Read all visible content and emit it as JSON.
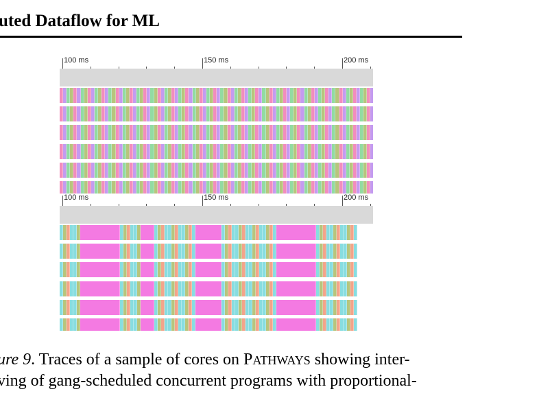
{
  "header": {
    "running_title": "uted Dataflow for ML"
  },
  "colors": {
    "pink": "#f28dbd",
    "purple": "#c49bf0",
    "green": "#92dba2",
    "olive": "#b7c57d",
    "cyan": "#88dde0",
    "salmon": "#f3a48a",
    "magenta": "#f47ae2",
    "ruler_gray": "#d9d9d9"
  },
  "panels": [
    {
      "name": "trace-top",
      "tick_labels": [
        "100 ms",
        "150 ms",
        "200 ms"
      ],
      "row_count": 6,
      "pattern": "interleaved-uniform"
    },
    {
      "name": "trace-bottom",
      "tick_labels": [
        "100 ms",
        "150 ms",
        "200 ms"
      ],
      "row_count": 6,
      "pattern": "interleaved-proportional"
    }
  ],
  "caption": {
    "figure_label": "ure 9",
    "line1_pre": ". Traces of a sample of cores on ",
    "system_name_cap": "P",
    "system_name_rest": "ATHWAYS",
    "line1_post": " showing inter-",
    "line2": "ving of gang-scheduled concurrent programs with proportional-"
  }
}
